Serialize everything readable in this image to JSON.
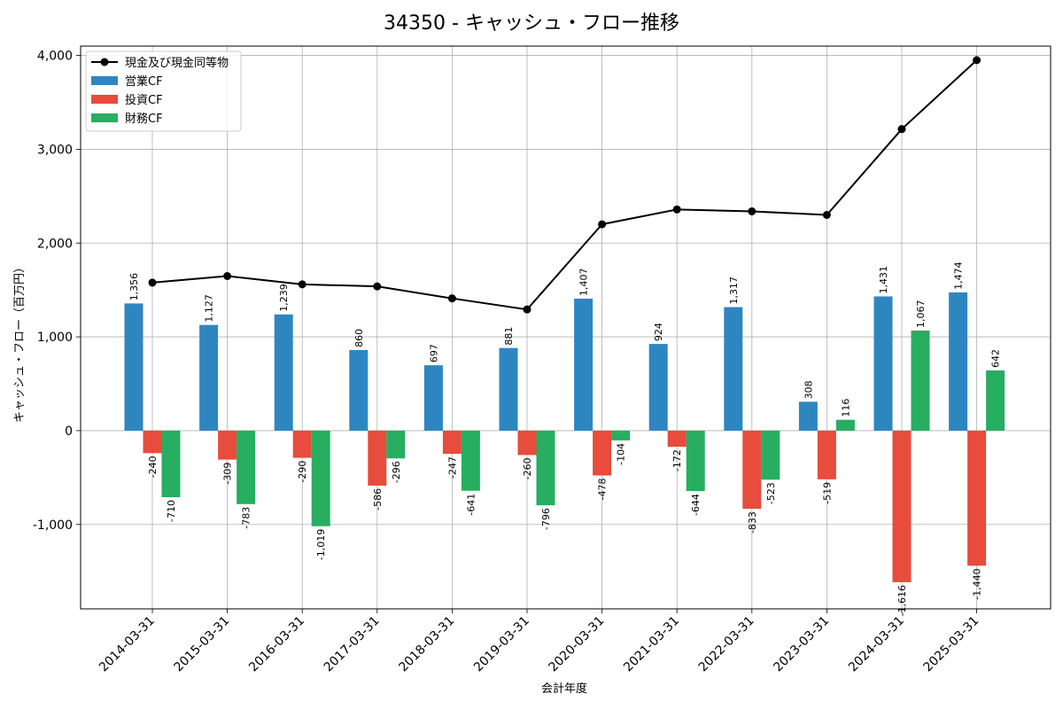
{
  "chart_data": {
    "type": "bar",
    "title": "34350 - キャッシュ・フロー推移",
    "xlabel": "会計年度",
    "ylabel": "キャッシュ・フロー（百万円）",
    "ylim": [
      -1900,
      4100
    ],
    "yticks": [
      -1000,
      0,
      1000,
      2000,
      3000,
      4000
    ],
    "ytick_labels": [
      "-1,000",
      "0",
      "1,000",
      "2,000",
      "3,000",
      "4,000"
    ],
    "grid": true,
    "legend_position": "top-left",
    "categories": [
      "2014-03-31",
      "2015-03-31",
      "2016-03-31",
      "2017-03-31",
      "2018-03-31",
      "2019-03-31",
      "2020-03-31",
      "2021-03-31",
      "2022-03-31",
      "2023-03-31",
      "2024-03-31",
      "2025-03-31"
    ],
    "series": [
      {
        "name": "営業CF",
        "kind": "bar",
        "color": "#2e86c1",
        "values": [
          1356,
          1127,
          1239,
          860,
          697,
          881,
          1407,
          924,
          1317,
          308,
          1431,
          1474
        ],
        "labels": [
          "1,356",
          "1,127",
          "1,239",
          "860",
          "697",
          "881",
          "1,407",
          "924",
          "1,317",
          "308",
          "1,431",
          "1,474"
        ]
      },
      {
        "name": "投資CF",
        "kind": "bar",
        "color": "#e74c3c",
        "values": [
          -240,
          -309,
          -290,
          -586,
          -247,
          -260,
          -478,
          -172,
          -833,
          -519,
          -1616,
          -1440
        ],
        "labels": [
          "-240",
          "-309",
          "-290",
          "-586",
          "-247",
          "-260",
          "-478",
          "-172",
          "-833",
          "-519",
          "-1,616",
          "-1,440"
        ]
      },
      {
        "name": "財務CF",
        "kind": "bar",
        "color": "#27ae60",
        "values": [
          -710,
          -783,
          -1019,
          -296,
          -641,
          -796,
          -104,
          -644,
          -523,
          116,
          1067,
          642
        ],
        "labels": [
          "-710",
          "-783",
          "-1,019",
          "-296",
          "-641",
          "-796",
          "-104",
          "-644",
          "-523",
          "116",
          "1,067",
          "642"
        ]
      },
      {
        "name": "現金及び現金同等物",
        "kind": "line",
        "color": "#000000",
        "values": [
          1578,
          1648,
          1560,
          1538,
          1410,
          1292,
          2200,
          2358,
          2338,
          2300,
          3215,
          3950
        ]
      }
    ],
    "legend_order": [
      "現金及び現金同等物",
      "営業CF",
      "投資CF",
      "財務CF"
    ]
  }
}
